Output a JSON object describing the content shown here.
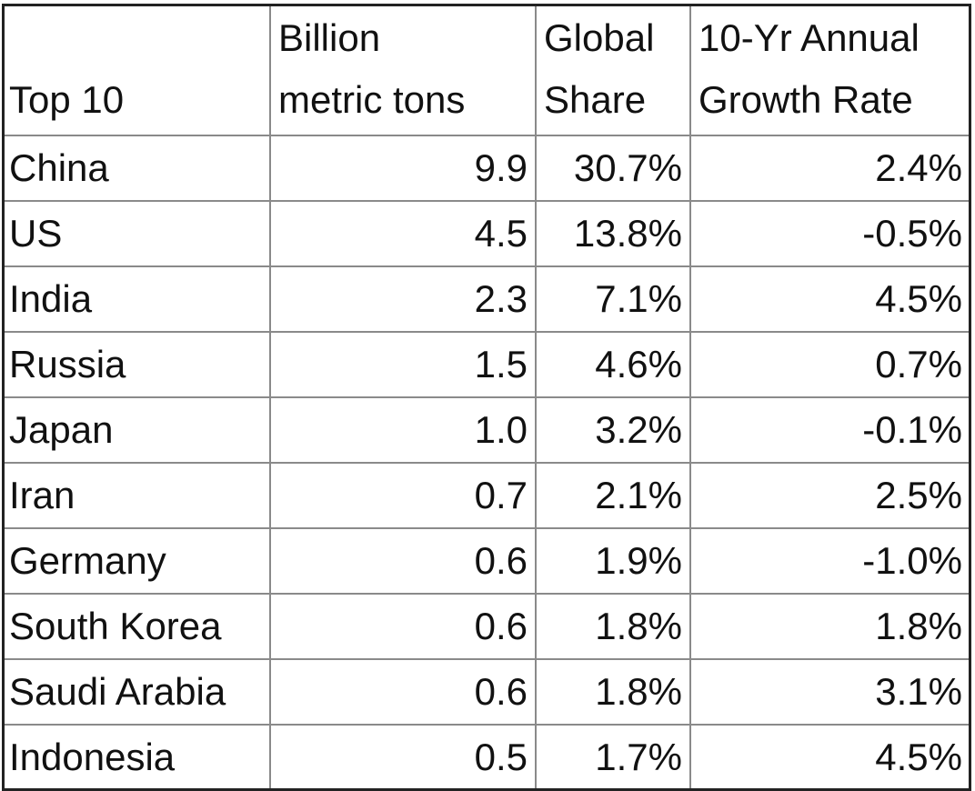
{
  "table": {
    "header": [
      [
        "Top 10"
      ],
      [
        "Billion",
        "metric tons"
      ],
      [
        "Global",
        "Share"
      ],
      [
        "10-Yr Annual",
        "Growth Rate"
      ]
    ],
    "rows": [
      [
        "China",
        "9.9",
        "30.7%",
        "2.4%"
      ],
      [
        "US",
        "4.5",
        "13.8%",
        "-0.5%"
      ],
      [
        "India",
        "2.3",
        "7.1%",
        "4.5%"
      ],
      [
        "Russia",
        "1.5",
        "4.6%",
        "0.7%"
      ],
      [
        "Japan",
        "1.0",
        "3.2%",
        "-0.1%"
      ],
      [
        "Iran",
        "0.7",
        "2.1%",
        "2.5%"
      ],
      [
        "Germany",
        "0.6",
        "1.9%",
        "-1.0%"
      ],
      [
        "South Korea",
        "0.6",
        "1.8%",
        "1.8%"
      ],
      [
        "Saudi Arabia",
        "0.6",
        "1.8%",
        "3.1%"
      ],
      [
        "Indonesia",
        "0.5",
        "1.7%",
        "4.5%"
      ]
    ]
  }
}
